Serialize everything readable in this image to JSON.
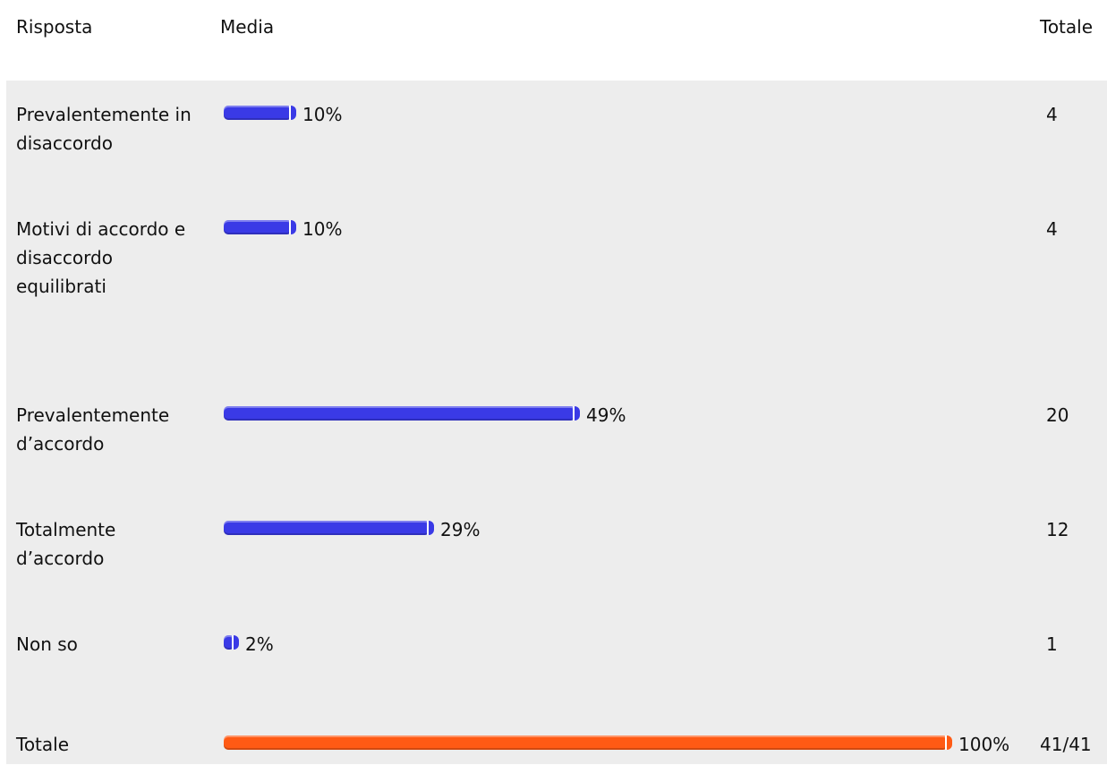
{
  "headers": {
    "response": "Risposta",
    "average": "Media",
    "total": "Totale"
  },
  "colors": {
    "bar": "#3a3ae6",
    "total_bar": "#ff5a14",
    "panel": "#ededed"
  },
  "chart_data": {
    "type": "bar",
    "orientation": "horizontal",
    "x_range": [
      0,
      100
    ],
    "categories": [
      "Prevalentemente in disaccordo",
      "Motivi di accordo e disaccordo equilibrati",
      "Prevalentemente d’accordo",
      "Totalmente d’accordo",
      "Non so",
      "Totale"
    ],
    "rows": [
      {
        "label": "Prevalentemente in disaccordo",
        "percent": 10,
        "percent_label": "10%",
        "total": "4"
      },
      {
        "label": "Motivi di accordo e disaccordo equilibrati",
        "percent": 10,
        "percent_label": "10%",
        "total": "4"
      },
      {
        "label": "Prevalentemente d’accordo",
        "percent": 49,
        "percent_label": "49%",
        "total": "20"
      },
      {
        "label": "Totalmente d’accordo",
        "percent": 29,
        "percent_label": "29%",
        "total": "12"
      },
      {
        "label": "Non so",
        "percent": 2,
        "percent_label": "2%",
        "total": "1"
      },
      {
        "label": "Totale",
        "percent": 100,
        "percent_label": "100%",
        "total": "41/41",
        "highlight": true
      }
    ]
  }
}
